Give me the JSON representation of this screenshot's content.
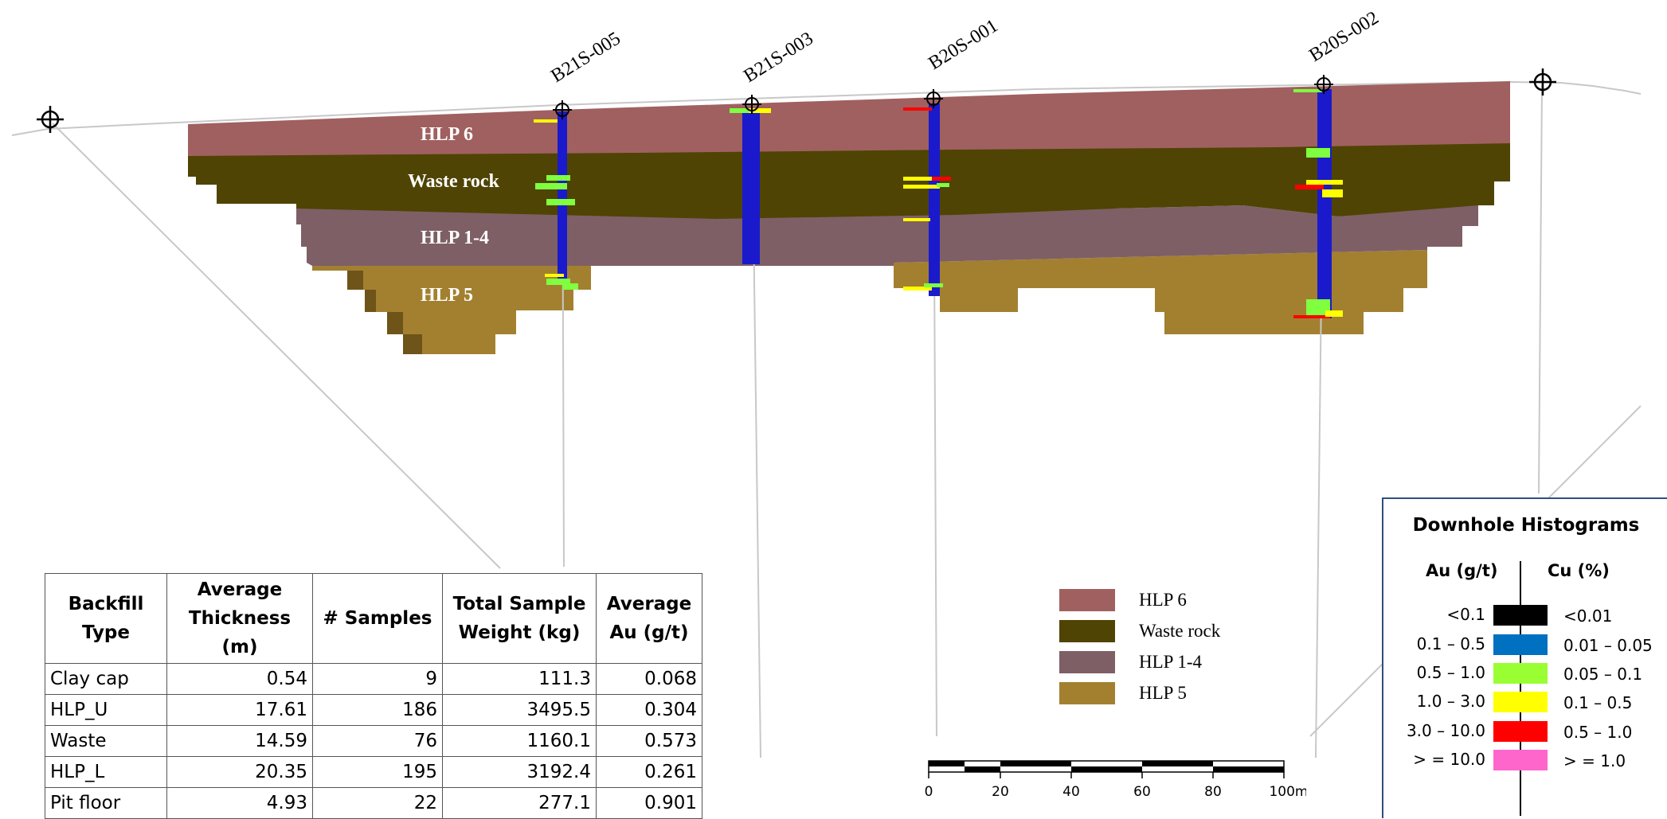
{
  "drill_holes": [
    {
      "name": "B21S-005"
    },
    {
      "name": "B21S-003"
    },
    {
      "name": "B20S-001"
    },
    {
      "name": "B20S-002"
    }
  ],
  "section_layers": [
    {
      "label": "HLP 6",
      "color": "#a06060"
    },
    {
      "label": "Waste rock",
      "color": "#4f4404"
    },
    {
      "label": "HLP 1-4",
      "color": "#7e5f66"
    },
    {
      "label": "HLP 5",
      "color": "#a38030"
    }
  ],
  "table": {
    "headers": [
      "Backfill Type",
      "Average Thickness (m)",
      "# Samples",
      "Total Sample Weight (kg)",
      "Average Au (g/t)"
    ],
    "rows": [
      [
        "Clay cap",
        "0.54",
        "9",
        "111.3",
        "0.068"
      ],
      [
        "HLP_U",
        "17.61",
        "186",
        "3495.5",
        "0.304"
      ],
      [
        "Waste",
        "14.59",
        "76",
        "1160.1",
        "0.573"
      ],
      [
        "HLP_L",
        "20.35",
        "195",
        "3192.4",
        "0.261"
      ],
      [
        "Pit floor",
        "4.93",
        "22",
        "277.1",
        "0.901"
      ]
    ]
  },
  "legend": [
    {
      "label": "HLP 6",
      "color": "#a06060"
    },
    {
      "label": "Waste rock",
      "color": "#4f4404"
    },
    {
      "label": "HLP 1-4",
      "color": "#7e5f66"
    },
    {
      "label": "HLP 5",
      "color": "#a38030"
    }
  ],
  "scale_bar": {
    "ticks": [
      "0",
      "20",
      "40",
      "60",
      "80",
      "100m"
    ]
  },
  "histogram_legend": {
    "title": "Downhole Histograms",
    "au_header": "Au (g/t)",
    "cu_header": "Cu (%)",
    "rows": [
      {
        "au": "<0.1",
        "cu": "<0.01",
        "color": "#000000"
      },
      {
        "au": "0.1 – 0.5",
        "cu": "0.01 – 0.05",
        "color": "#0070c0"
      },
      {
        "au": "0.5 – 1.0",
        "cu": "0.05 – 0.1",
        "color": "#99ff33"
      },
      {
        "au": "1.0 – 3.0",
        "cu": "0.1 – 0.5",
        "color": "#ffff00"
      },
      {
        "au": "3.0 – 10.0",
        "cu": "0.5 – 1.0",
        "color": "#ff0000"
      },
      {
        "au": "> = 10.0",
        "cu": "> = 1.0",
        "color": "#ff66cc"
      }
    ]
  }
}
